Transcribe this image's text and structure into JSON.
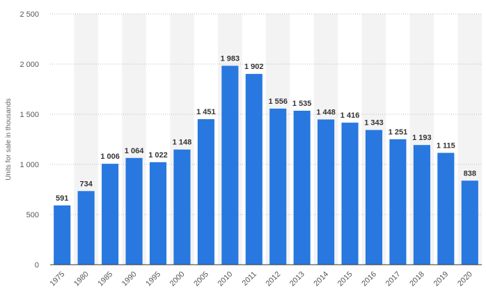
{
  "chart_data": {
    "type": "bar",
    "categories": [
      "1975",
      "1980",
      "1985",
      "1990",
      "1995",
      "2000",
      "2005",
      "2010",
      "2011",
      "2012",
      "2013",
      "2014",
      "2015",
      "2016",
      "2017",
      "2018",
      "2019",
      "2020"
    ],
    "values": [
      591,
      734,
      1006,
      1064,
      1022,
      1148,
      1451,
      1983,
      1902,
      1556,
      1535,
      1448,
      1416,
      1343,
      1251,
      1193,
      1115,
      838
    ],
    "value_labels": [
      "591",
      "734",
      "1 006",
      "1 064",
      "1 022",
      "1 148",
      "1 451",
      "1 983",
      "1 902",
      "1 556",
      "1 535",
      "1 448",
      "1 416",
      "1 343",
      "1 251",
      "1 193",
      "1 115",
      "838"
    ],
    "ylabel": "Units for sale in thousands",
    "ylim": [
      0,
      2500
    ],
    "yticks": [
      0,
      500,
      1000,
      1500,
      2000,
      2500
    ],
    "ytick_labels": [
      "0",
      "500",
      "1 000",
      "1 500",
      "2 000",
      "2 500"
    ],
    "grid": true,
    "bar_color": "#2878e0",
    "band_color": "#f3f3f3"
  }
}
